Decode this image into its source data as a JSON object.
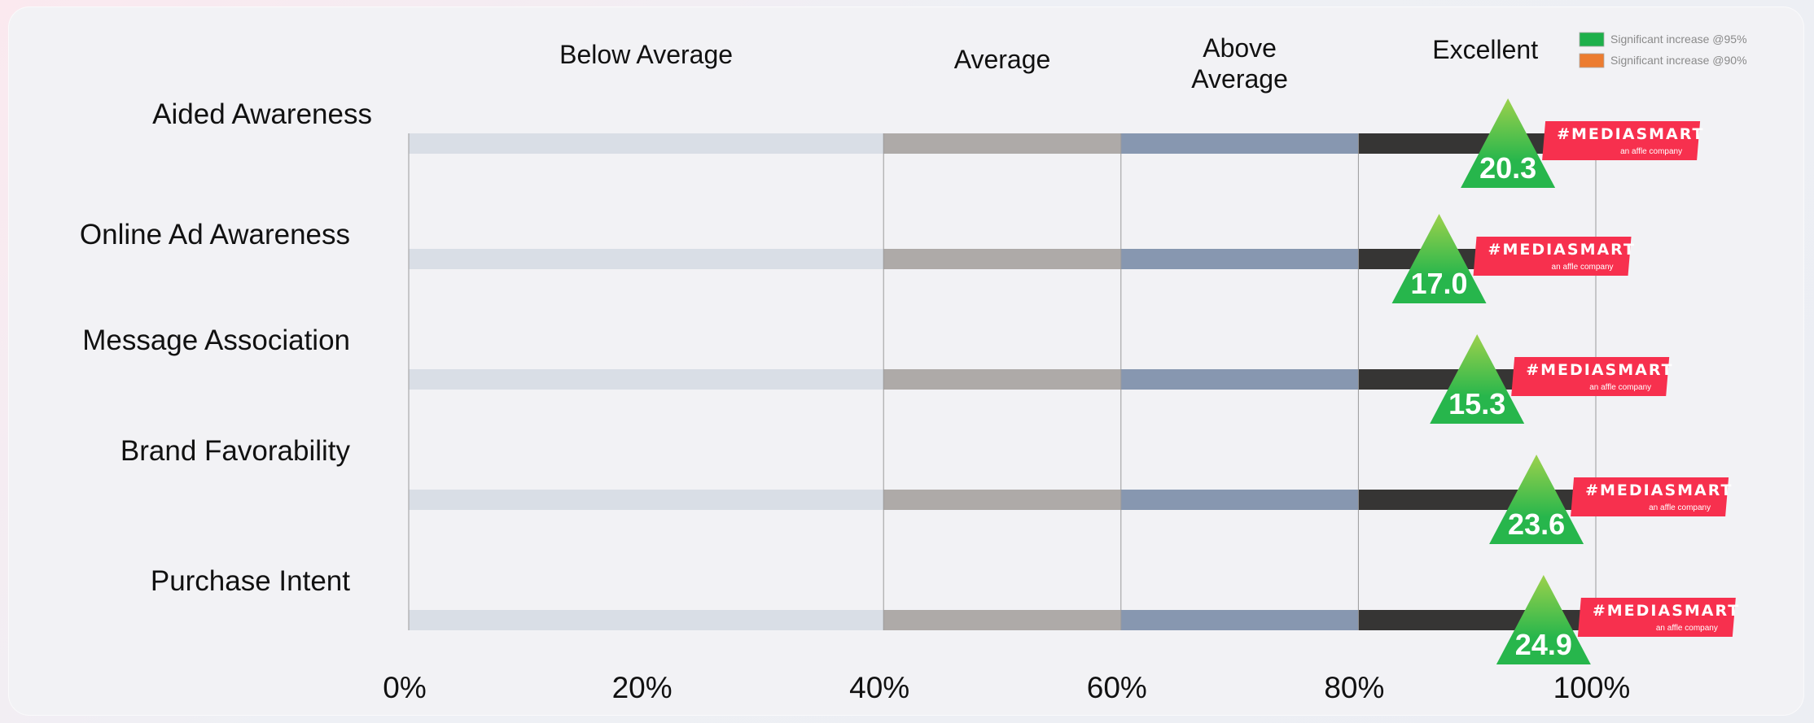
{
  "chart_data": {
    "type": "bar",
    "categories": [
      "Aided Awareness",
      "Online Ad Awareness",
      "Message Association",
      "Brand Favorability",
      "Purchase Intent"
    ],
    "values": [
      20.3,
      17.0,
      15.3,
      23.6,
      24.9
    ],
    "value_labels": [
      "20.3",
      "17.0",
      "15.3",
      "23.6",
      "24.9"
    ],
    "marker_positions": [
      92.6,
      86.8,
      90.0,
      95.0,
      95.6
    ],
    "bands": [
      {
        "label": "Below Average",
        "from": 0,
        "to": 40,
        "color": "#d9dee6"
      },
      {
        "label": "Average",
        "from": 40,
        "to": 60,
        "color": "#aeaaa8"
      },
      {
        "label": "Above\nAverage",
        "from": 60,
        "to": 80,
        "color": "#8797b0"
      },
      {
        "label": "Excellent",
        "from": 80,
        "to": 100,
        "color": "#363534"
      }
    ],
    "x_ticks": [
      "0%",
      "20%",
      "40%",
      "60%",
      "80%",
      "100%"
    ],
    "xlim": [
      0,
      100
    ],
    "legend": [
      {
        "label": "Significant increase @95%",
        "color": "#1eb04b"
      },
      {
        "label": "Significant increase @90%",
        "color": "#ec7c30"
      }
    ],
    "legend_position": "top-right",
    "marker_color": "#27b64c",
    "marker_top_color": "#9cd14c",
    "logo": {
      "text": "#MEDIASMART",
      "sub": "an affle company",
      "color": "#f7304e"
    }
  }
}
